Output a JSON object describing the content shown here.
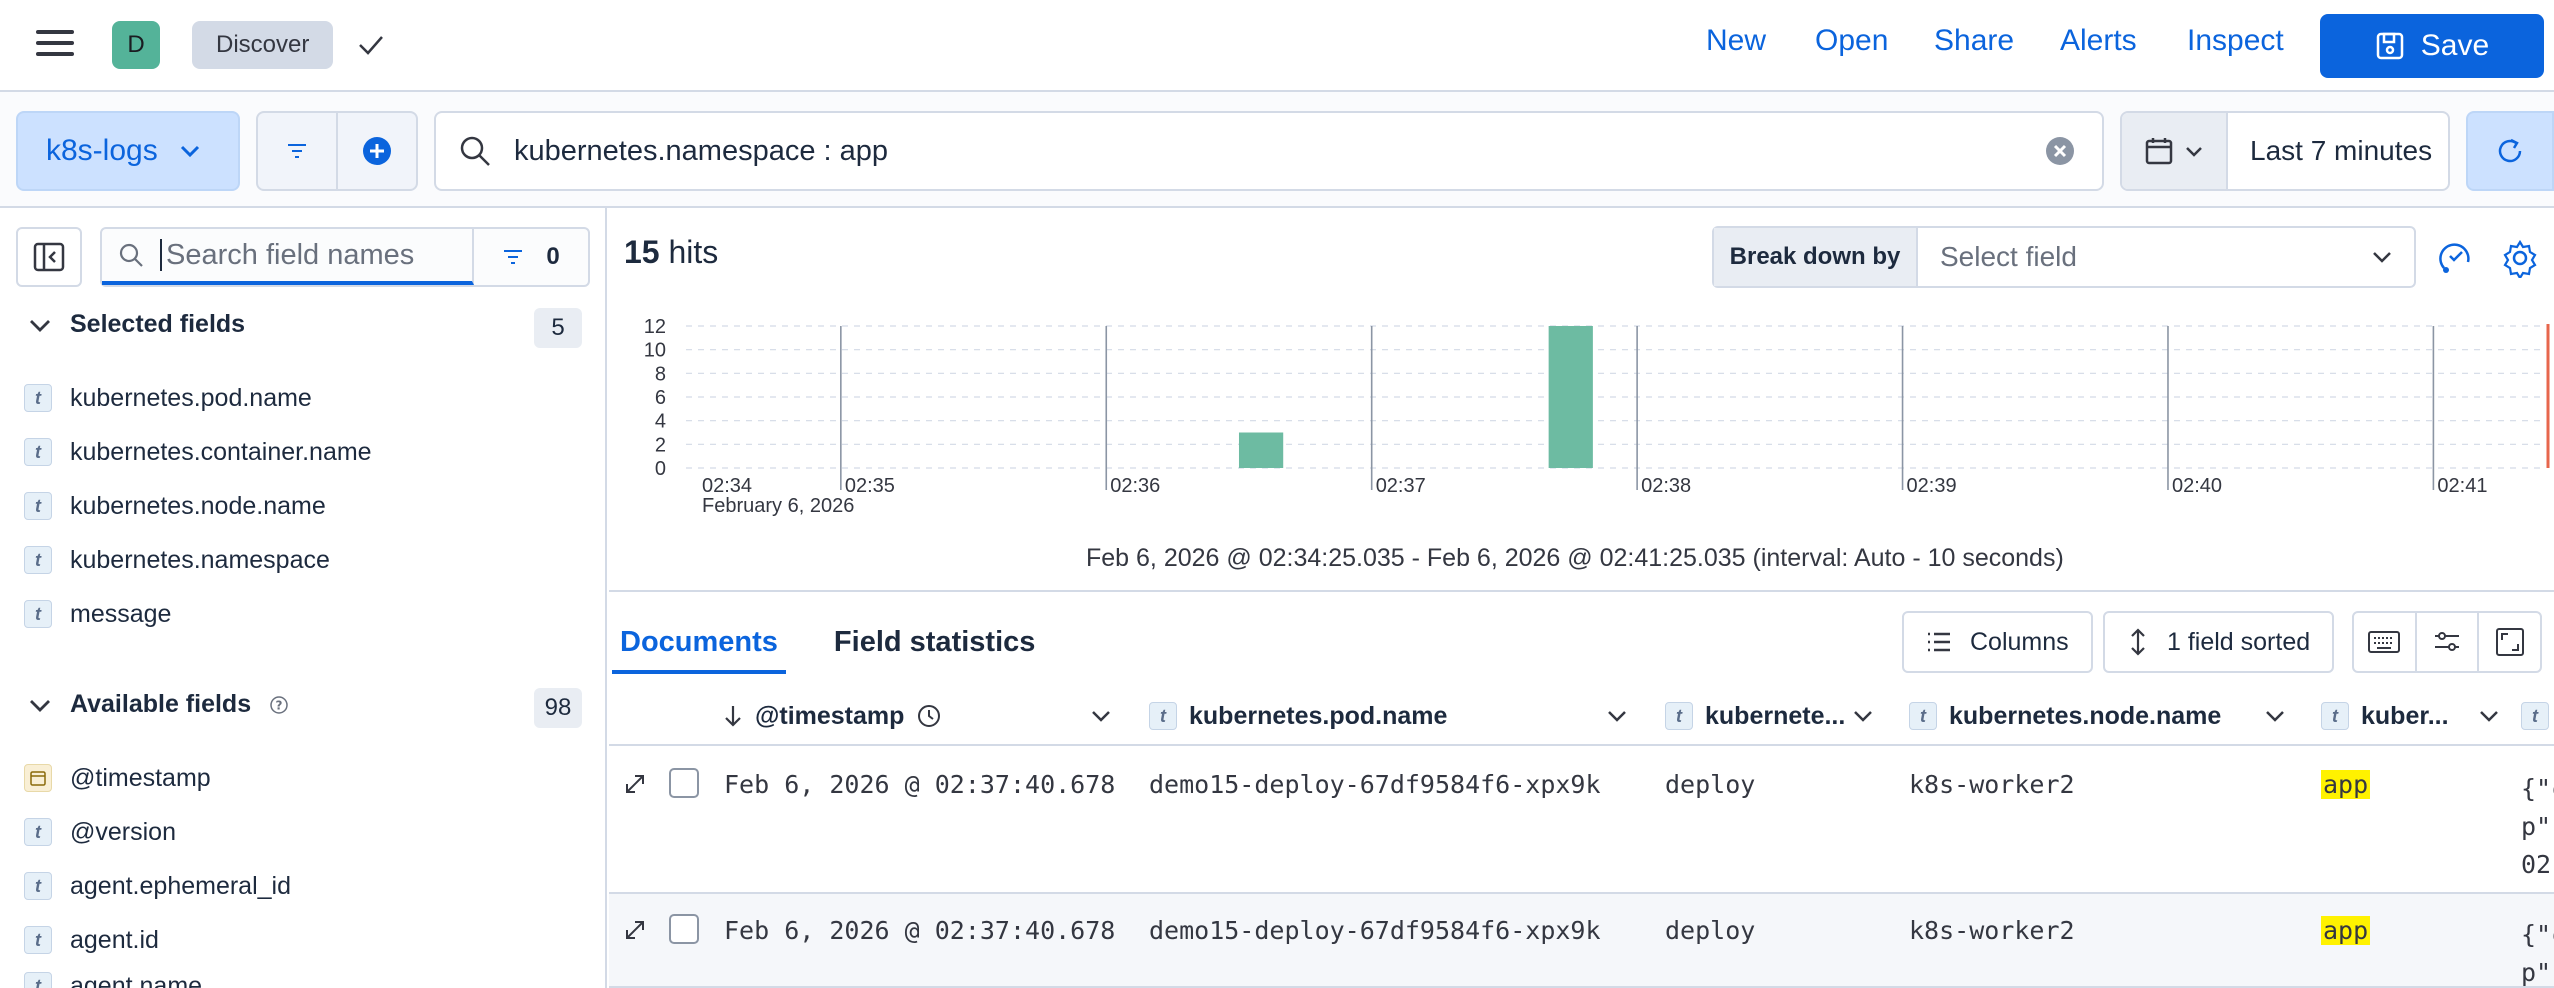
{
  "header": {
    "avatar_letter": "D",
    "breadcrumb": "Discover",
    "links": [
      "New",
      "Open",
      "Share",
      "Alerts",
      "Inspect"
    ],
    "save_label": "Save"
  },
  "querybar": {
    "data_view": "k8s-logs",
    "query": "kubernetes.namespace : app",
    "time_range": "Last 7 minutes"
  },
  "sidebar": {
    "search_placeholder": "Search field names",
    "filter_count": "0",
    "selected_title": "Selected fields",
    "selected_count": "5",
    "selected_fields": [
      {
        "type": "t",
        "name": "kubernetes.pod.name"
      },
      {
        "type": "t",
        "name": "kubernetes.container.name"
      },
      {
        "type": "t",
        "name": "kubernetes.node.name"
      },
      {
        "type": "t",
        "name": "kubernetes.namespace"
      },
      {
        "type": "t",
        "name": "message"
      }
    ],
    "available_title": "Available fields",
    "available_count": "98",
    "available_fields": [
      {
        "type": "date",
        "name": "@timestamp"
      },
      {
        "type": "t",
        "name": "@version"
      },
      {
        "type": "t",
        "name": "agent.ephemeral_id"
      },
      {
        "type": "t",
        "name": "agent.id"
      },
      {
        "type": "t",
        "name": "agent.name"
      }
    ]
  },
  "main": {
    "hits_count": "15",
    "hits_label": "hits",
    "breakdown_label": "Break down by",
    "breakdown_placeholder": "Select field",
    "time_range_text": "Feb 6, 2026 @ 02:34:25.035 - Feb 6, 2026 @ 02:41:25.035 (interval: Auto - 10 seconds)",
    "tabs": [
      "Documents",
      "Field statistics"
    ],
    "columns_label": "Columns",
    "sorted_label": "1 field sorted"
  },
  "chart_data": {
    "type": "bar",
    "x_tick_labels": [
      "02:34",
      "02:35",
      "02:36",
      "02:37",
      "02:38",
      "02:39",
      "02:40",
      "02:41"
    ],
    "x_date_label": "February 6, 2026",
    "y_ticks": [
      0,
      2,
      4,
      6,
      8,
      10,
      12
    ],
    "ylim": [
      0,
      12
    ],
    "bars": [
      {
        "x": "02:36:30",
        "value": 3
      },
      {
        "x": "02:37:40",
        "value": 12
      }
    ],
    "color": "#6dbba2",
    "grid": true
  },
  "table": {
    "columns": [
      {
        "type": "",
        "label": "@timestamp"
      },
      {
        "type": "t",
        "label": "kubernetes.pod.name"
      },
      {
        "type": "t",
        "label": "kubernete..."
      },
      {
        "type": "t",
        "label": "kubernetes.node.name"
      },
      {
        "type": "t",
        "label": "kuber..."
      },
      {
        "type": "t",
        "label": ""
      }
    ],
    "rows": [
      {
        "timestamp": "Feb 6, 2026 @ 02:37:40.678",
        "pod": "demo15-deploy-67df9584f6-xpx9k",
        "container": "deploy",
        "node": "k8s-worker2",
        "namespace": "app",
        "msg1": "{\"c",
        "msg2": "p\"",
        "msg3": "02"
      },
      {
        "timestamp": "Feb 6, 2026 @ 02:37:40.678",
        "pod": "demo15-deploy-67df9584f6-xpx9k",
        "container": "deploy",
        "node": "k8s-worker2",
        "namespace": "app",
        "msg1": "{\"c",
        "msg2": "p\"",
        "msg3": ""
      }
    ]
  }
}
